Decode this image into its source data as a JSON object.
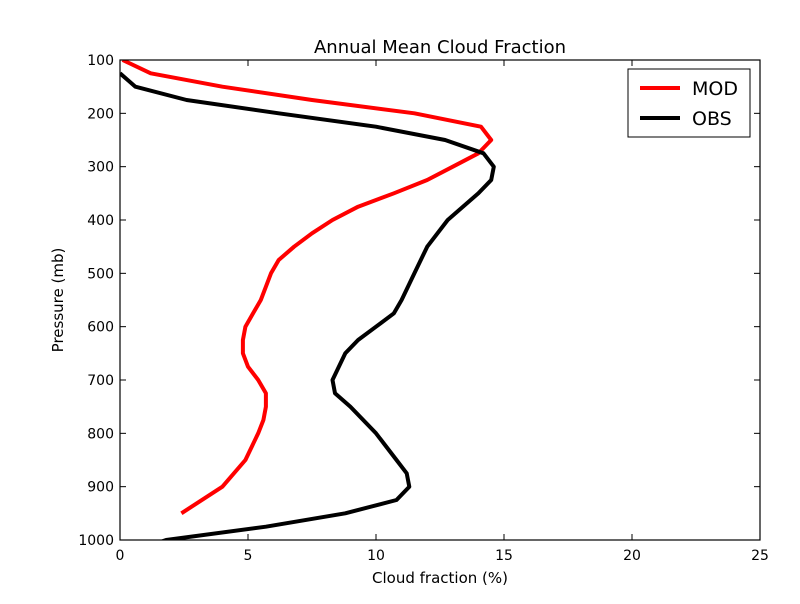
{
  "chart_data": {
    "type": "line",
    "title": "Annual Mean Cloud Fraction",
    "xlabel": "Cloud fraction (%)",
    "ylabel": "Pressure (mb)",
    "xlim": [
      0,
      25
    ],
    "ylim": [
      1000,
      100
    ],
    "y_inverted": true,
    "grid": false,
    "legend_position": "top-right",
    "xticks": [
      0,
      5,
      10,
      15,
      20,
      25
    ],
    "xtick_labels": [
      "0",
      "5",
      "10",
      "15",
      "20",
      "25"
    ],
    "yticks": [
      100,
      200,
      300,
      400,
      500,
      600,
      700,
      800,
      900,
      1000
    ],
    "ytick_labels": [
      "100",
      "200",
      "300",
      "400",
      "500",
      "600",
      "700",
      "800",
      "900",
      "1000"
    ],
    "series": [
      {
        "name": "MOD",
        "color": "#ff0000",
        "x": [
          0.1,
          1.2,
          4.0,
          7.5,
          11.5,
          14.1,
          14.5,
          14.0,
          13.0,
          12.0,
          10.7,
          9.3,
          8.3,
          7.5,
          6.8,
          6.2,
          5.9,
          5.7,
          5.5,
          5.2,
          4.9,
          4.8,
          4.8,
          5.0,
          5.4,
          5.7,
          5.7,
          5.6,
          5.4,
          4.9,
          4.0,
          2.4
        ],
        "y": [
          100,
          125,
          150,
          175,
          200,
          225,
          250,
          275,
          300,
          325,
          350,
          375,
          400,
          425,
          450,
          475,
          500,
          525,
          550,
          575,
          600,
          625,
          650,
          675,
          700,
          725,
          750,
          775,
          800,
          850,
          900,
          950
        ]
      },
      {
        "name": "OBS",
        "color": "#000000",
        "x": [
          0.0,
          0.6,
          2.6,
          6.2,
          10.0,
          12.7,
          14.2,
          14.6,
          14.5,
          14.0,
          12.8,
          12.0,
          11.5,
          11.0,
          10.7,
          10.0,
          9.3,
          8.8,
          8.3,
          8.4,
          9.0,
          9.5,
          10.0,
          10.8,
          11.2,
          11.3,
          10.8,
          8.8,
          5.7,
          1.8,
          0.3
        ],
        "y": [
          125,
          150,
          175,
          200,
          225,
          250,
          275,
          300,
          325,
          350,
          400,
          450,
          500,
          550,
          575,
          600,
          625,
          650,
          700,
          725,
          750,
          775,
          800,
          850,
          875,
          900,
          925,
          950,
          975,
          1000,
          1025
        ]
      }
    ]
  }
}
